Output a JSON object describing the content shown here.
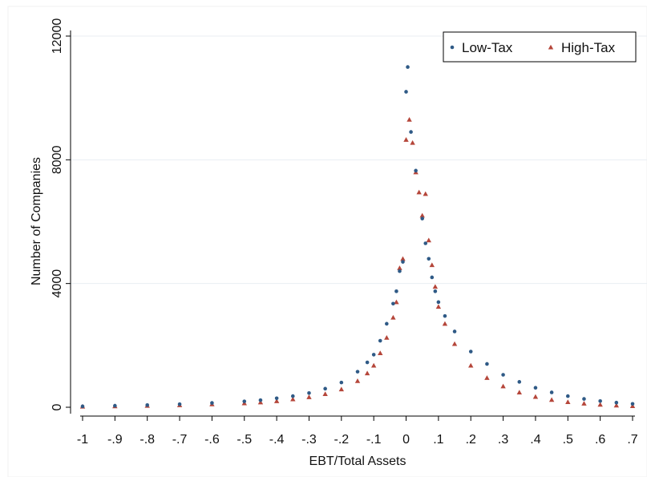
{
  "chart_data": {
    "type": "scatter",
    "xlabel": "EBT/Total Assets",
    "ylabel": "Number of Companies",
    "xlim": [
      -1.0,
      0.7
    ],
    "ylim": [
      0,
      12000
    ],
    "x_ticks": [
      -1.0,
      -0.9,
      -0.8,
      -0.7,
      -0.6,
      -0.5,
      -0.4,
      -0.3,
      -0.2,
      -0.1,
      0.0,
      0.1,
      0.2,
      0.3,
      0.4,
      0.5,
      0.6,
      0.7
    ],
    "x_tick_labels": [
      "-1",
      "-.9",
      "-.8",
      "-.7",
      "-.6",
      "-.5",
      "-.4",
      "-.3",
      "-.2",
      "-.1",
      "0",
      ".1",
      ".2",
      ".3",
      ".4",
      ".5",
      ".6",
      ".7"
    ],
    "y_ticks": [
      0,
      4000,
      8000,
      12000
    ],
    "y_tick_labels": [
      "0",
      "4000",
      "8000",
      "12000"
    ],
    "grid": "horizontal",
    "legend_position": "top-right",
    "series": [
      {
        "name": "Low-Tax",
        "color": "#2f5a86",
        "marker": "circle",
        "points": [
          [
            -1.0,
            30
          ],
          [
            -0.9,
            50
          ],
          [
            -0.8,
            70
          ],
          [
            -0.7,
            100
          ],
          [
            -0.6,
            140
          ],
          [
            -0.5,
            190
          ],
          [
            -0.45,
            230
          ],
          [
            -0.4,
            290
          ],
          [
            -0.35,
            360
          ],
          [
            -0.3,
            460
          ],
          [
            -0.25,
            600
          ],
          [
            -0.2,
            800
          ],
          [
            -0.15,
            1150
          ],
          [
            -0.12,
            1450
          ],
          [
            -0.1,
            1700
          ],
          [
            -0.08,
            2150
          ],
          [
            -0.06,
            2700
          ],
          [
            -0.04,
            3350
          ],
          [
            -0.03,
            3750
          ],
          [
            -0.02,
            4400
          ],
          [
            -0.01,
            4700
          ],
          [
            0.0,
            10200
          ],
          [
            0.005,
            11000
          ],
          [
            0.015,
            8900
          ],
          [
            0.03,
            7650
          ],
          [
            0.05,
            6100
          ],
          [
            0.06,
            5300
          ],
          [
            0.07,
            4800
          ],
          [
            0.08,
            4200
          ],
          [
            0.09,
            3750
          ],
          [
            0.1,
            3400
          ],
          [
            0.12,
            2950
          ],
          [
            0.15,
            2450
          ],
          [
            0.2,
            1800
          ],
          [
            0.25,
            1400
          ],
          [
            0.3,
            1050
          ],
          [
            0.35,
            820
          ],
          [
            0.4,
            630
          ],
          [
            0.45,
            480
          ],
          [
            0.5,
            360
          ],
          [
            0.55,
            270
          ],
          [
            0.6,
            200
          ],
          [
            0.65,
            150
          ],
          [
            0.7,
            110
          ]
        ]
      },
      {
        "name": "High-Tax",
        "color": "#b5463a",
        "marker": "triangle",
        "points": [
          [
            -1.0,
            25
          ],
          [
            -0.9,
            35
          ],
          [
            -0.8,
            50
          ],
          [
            -0.7,
            70
          ],
          [
            -0.6,
            100
          ],
          [
            -0.5,
            130
          ],
          [
            -0.45,
            160
          ],
          [
            -0.4,
            200
          ],
          [
            -0.35,
            260
          ],
          [
            -0.3,
            330
          ],
          [
            -0.25,
            430
          ],
          [
            -0.2,
            580
          ],
          [
            -0.15,
            850
          ],
          [
            -0.12,
            1100
          ],
          [
            -0.1,
            1350
          ],
          [
            -0.08,
            1750
          ],
          [
            -0.06,
            2250
          ],
          [
            -0.04,
            2900
          ],
          [
            -0.03,
            3400
          ],
          [
            -0.02,
            4500
          ],
          [
            -0.01,
            4800
          ],
          [
            0.0,
            8650
          ],
          [
            0.01,
            9300
          ],
          [
            0.02,
            8550
          ],
          [
            0.03,
            7600
          ],
          [
            0.04,
            6950
          ],
          [
            0.05,
            6200
          ],
          [
            0.06,
            6900
          ],
          [
            0.07,
            5400
          ],
          [
            0.08,
            4600
          ],
          [
            0.09,
            3900
          ],
          [
            0.1,
            3250
          ],
          [
            0.12,
            2700
          ],
          [
            0.15,
            2050
          ],
          [
            0.2,
            1350
          ],
          [
            0.25,
            950
          ],
          [
            0.3,
            680
          ],
          [
            0.35,
            480
          ],
          [
            0.4,
            340
          ],
          [
            0.45,
            240
          ],
          [
            0.5,
            170
          ],
          [
            0.55,
            120
          ],
          [
            0.6,
            85
          ],
          [
            0.65,
            60
          ],
          [
            0.7,
            40
          ]
        ]
      }
    ]
  }
}
